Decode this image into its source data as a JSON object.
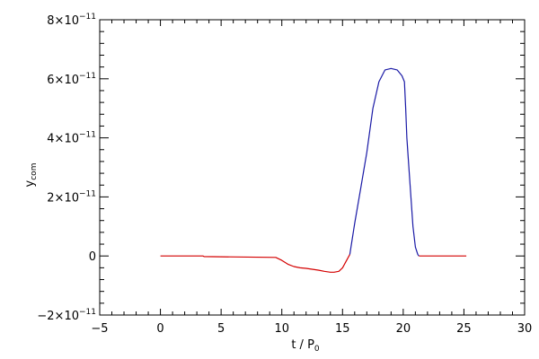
{
  "chart_data": {
    "type": "line",
    "xlabel": {
      "main": "t / P",
      "sub": "0"
    },
    "ylabel": {
      "main": "y",
      "sub": "com"
    },
    "xlim": [
      -5,
      30
    ],
    "ylim": [
      -2e-11,
      8e-11
    ],
    "grid": false,
    "x_ticks": [
      {
        "value": -5,
        "label": "−5"
      },
      {
        "value": 0,
        "label": "0"
      },
      {
        "value": 5,
        "label": "5"
      },
      {
        "value": 10,
        "label": "10"
      },
      {
        "value": 15,
        "label": "15"
      },
      {
        "value": 20,
        "label": "20"
      },
      {
        "value": 25,
        "label": "25"
      },
      {
        "value": 30,
        "label": "30"
      }
    ],
    "y_ticks": [
      {
        "value": -2e-11,
        "mant": "−2×10",
        "exp": "−11"
      },
      {
        "value": 0,
        "mant": "0",
        "exp": ""
      },
      {
        "value": 2e-11,
        "mant": "2×10",
        "exp": "−11"
      },
      {
        "value": 4e-11,
        "mant": "4×10",
        "exp": "−11"
      },
      {
        "value": 6e-11,
        "mant": "6×10",
        "exp": "−11"
      },
      {
        "value": 8e-11,
        "mant": "8×10",
        "exp": "−11"
      }
    ],
    "series": [
      {
        "color": "#d40000",
        "x": [
          0,
          3.5,
          3.6,
          9.5,
          10,
          10.5,
          11,
          11.5,
          12,
          12.5,
          13,
          13.5,
          14,
          14.3,
          14.7,
          15,
          15.3,
          15.6
        ],
        "y": [
          0,
          0,
          -2e-13,
          -5e-13,
          -1.5e-12,
          -2.8e-12,
          -3.6e-12,
          -4e-12,
          -4.2e-12,
          -4.5e-12,
          -4.8e-12,
          -5.2e-12,
          -5.5e-12,
          -5.5e-12,
          -5.2e-12,
          -4e-12,
          -1.8e-12,
          5e-13
        ]
      },
      {
        "color": "#1a1aa6",
        "x": [
          15.6,
          16,
          16.5,
          17,
          17.5,
          18,
          18.5,
          19,
          19.5,
          19.9,
          20.1,
          20.2,
          20.3,
          20.5,
          20.8,
          21,
          21.2,
          21.3
        ],
        "y": [
          5e-13,
          1.1e-11,
          2.3e-11,
          3.5e-11,
          5e-11,
          5.9e-11,
          6.3e-11,
          6.35e-11,
          6.3e-11,
          6.1e-11,
          5.9e-11,
          5e-11,
          4e-11,
          2.8e-11,
          1e-11,
          3e-12,
          5e-13,
          0
        ]
      },
      {
        "color": "#d40000",
        "x": [
          21.3,
          25.2
        ],
        "y": [
          0,
          0
        ]
      }
    ]
  }
}
